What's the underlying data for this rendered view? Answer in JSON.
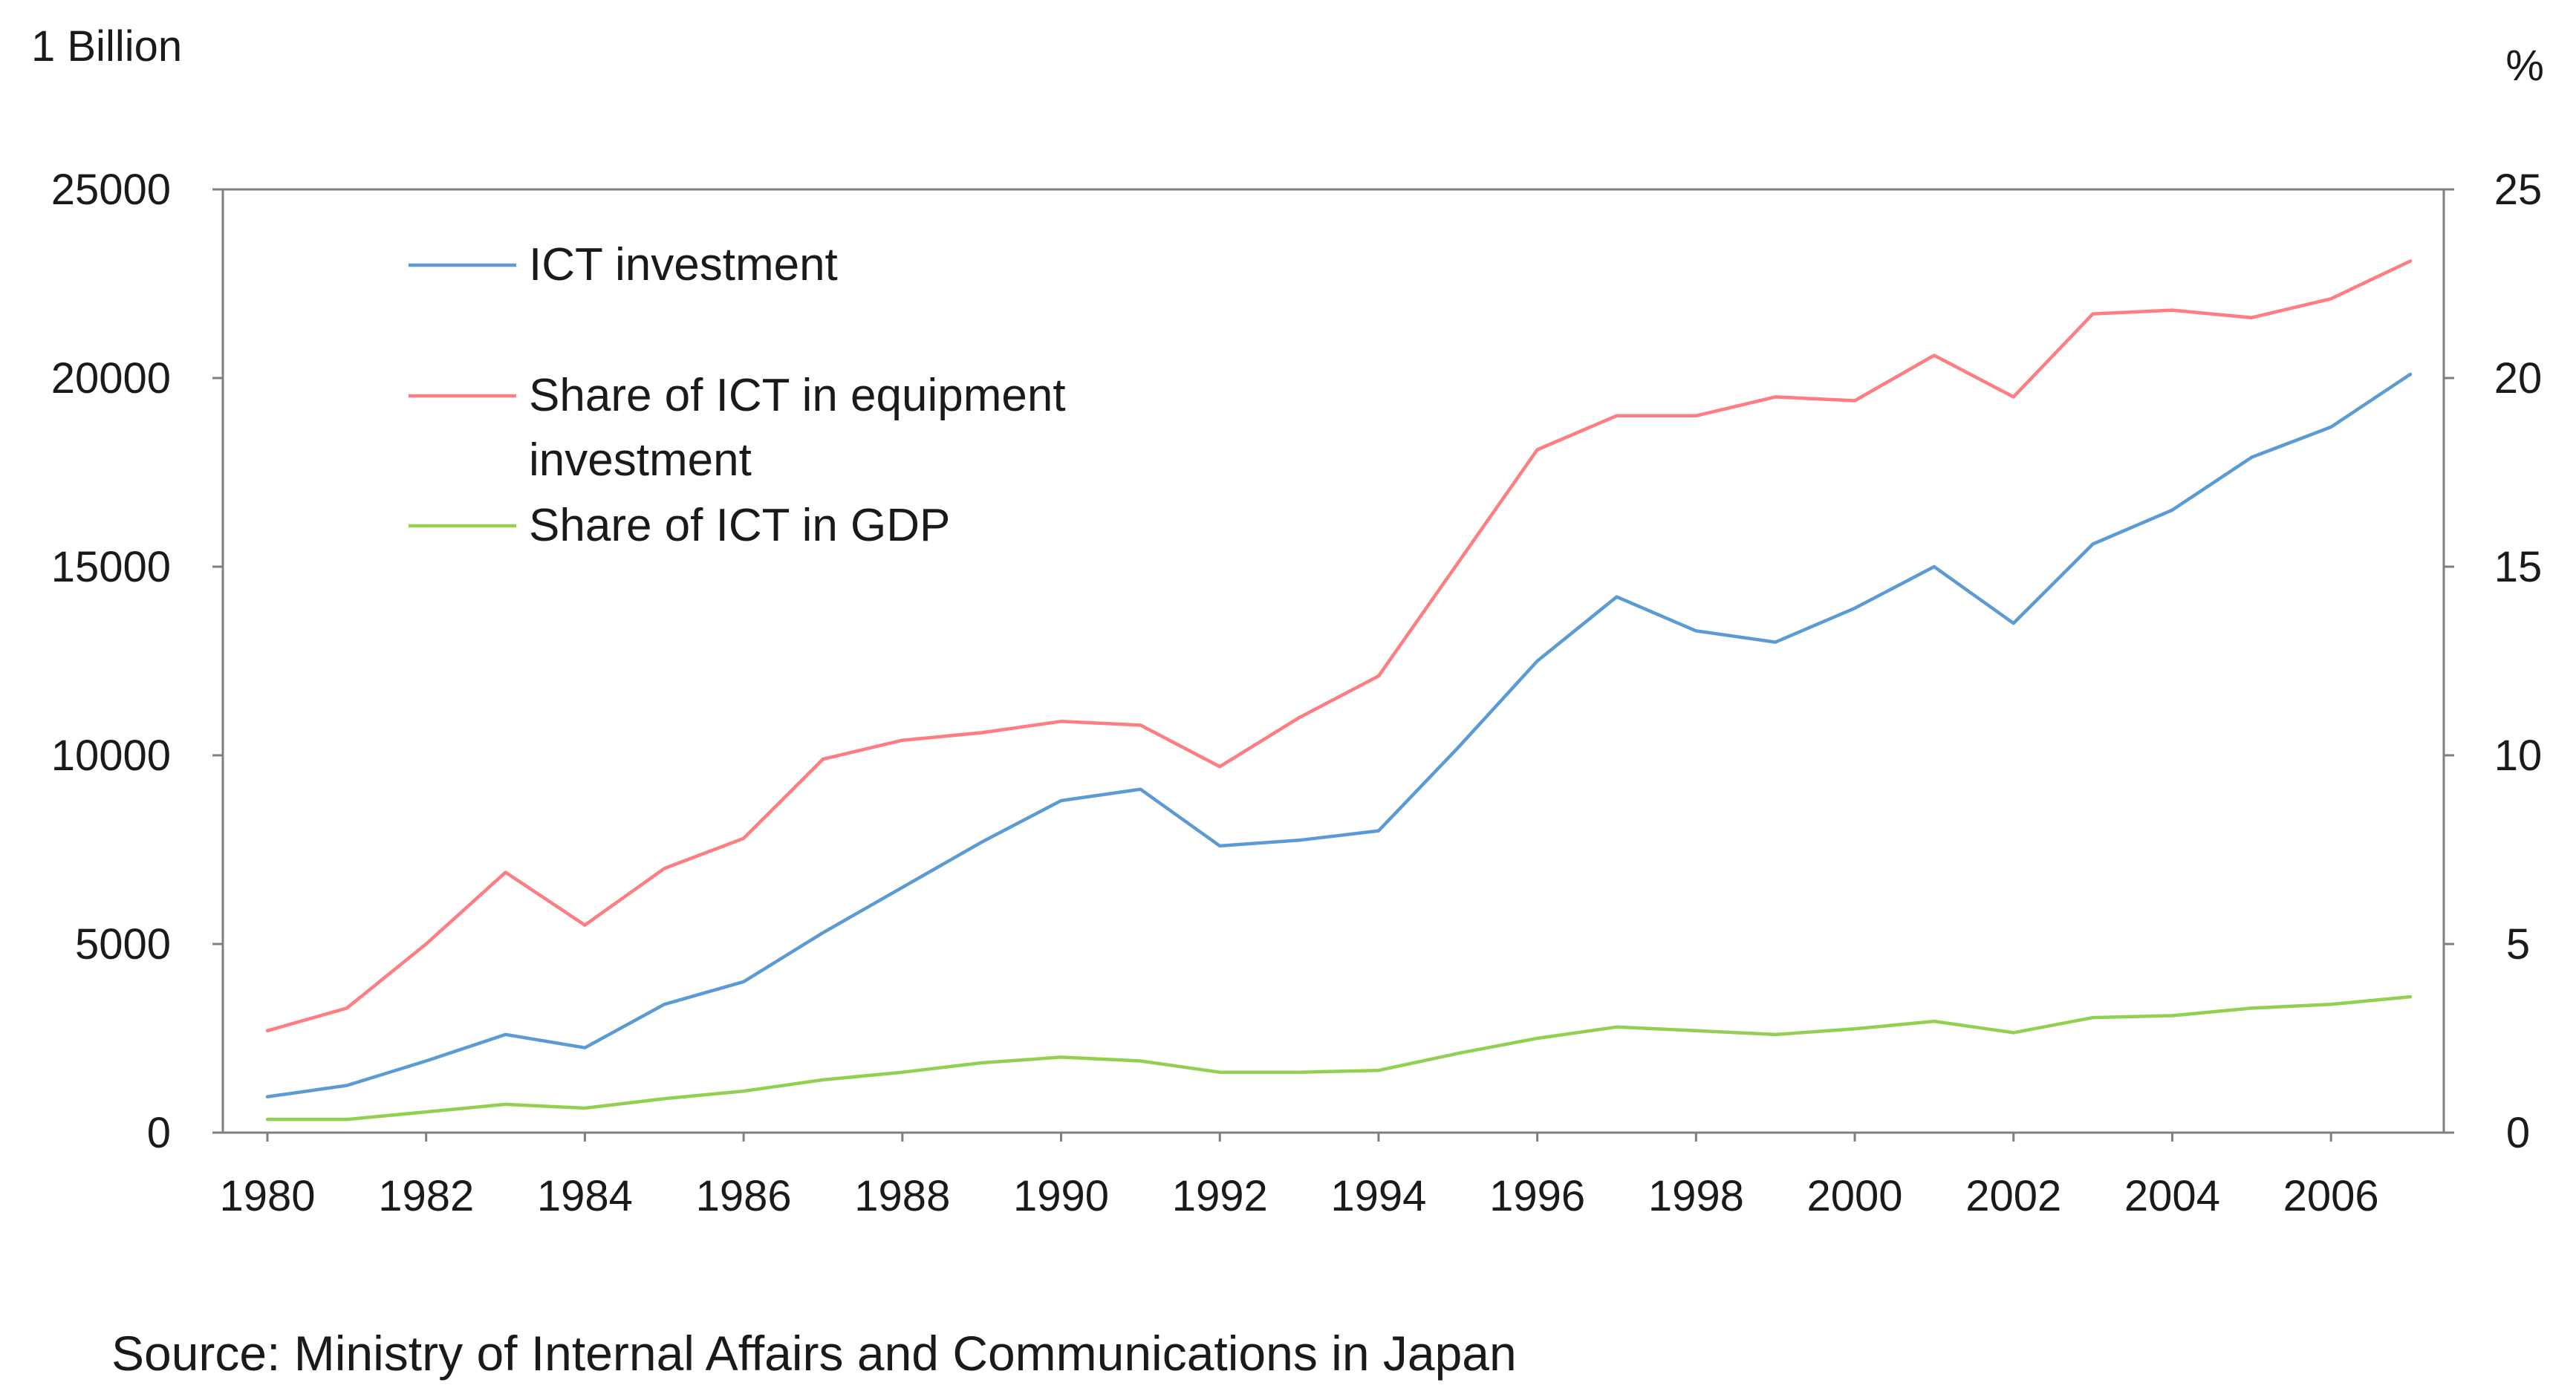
{
  "chart_data": {
    "type": "line",
    "left_axis_unit": "1 Billion",
    "right_axis_unit": "%",
    "source": "Source: Ministry of Internal Affairs and Communications in Japan",
    "x": [
      1980,
      1981,
      1982,
      1983,
      1984,
      1985,
      1986,
      1987,
      1988,
      1989,
      1990,
      1991,
      1992,
      1993,
      1994,
      1995,
      1996,
      1997,
      1998,
      1999,
      2000,
      2001,
      2002,
      2003,
      2004,
      2005,
      2006,
      2007
    ],
    "x_tick_labels": [
      "1980",
      "1982",
      "1984",
      "1986",
      "1988",
      "1990",
      "1992",
      "1994",
      "1996",
      "1998",
      "2000",
      "2002",
      "2004",
      "2006"
    ],
    "xlim": [
      1980,
      2007
    ],
    "y_left_ticks": [
      "0",
      "5000",
      "10000",
      "15000",
      "20000",
      "25000"
    ],
    "y_left_lim": [
      0,
      25000
    ],
    "y_right_ticks": [
      "0",
      "5",
      "10",
      "15",
      "20",
      "25"
    ],
    "y_right_lim": [
      0,
      25
    ],
    "grid": false,
    "legend_position": "top-left",
    "series": [
      {
        "name": "ICT investment",
        "axis": "left",
        "color": "#5b9bd5",
        "values": [
          950,
          1250,
          1900,
          2600,
          2250,
          3400,
          4000,
          5300,
          6500,
          7700,
          8800,
          9100,
          7600,
          7750,
          8000,
          10200,
          12500,
          14200,
          13300,
          13000,
          13900,
          15000,
          13500,
          15600,
          16500,
          17900,
          18700,
          20100
        ]
      },
      {
        "name": "Share of ICT in equipment investment",
        "axis": "right",
        "color": "#ff7c80",
        "values": [
          2.7,
          3.3,
          5.0,
          6.9,
          5.5,
          7.0,
          7.8,
          9.9,
          10.4,
          10.6,
          10.9,
          10.8,
          9.7,
          11.0,
          12.1,
          15.1,
          18.1,
          19.0,
          19.0,
          19.5,
          19.4,
          20.6,
          19.5,
          21.7,
          21.8,
          21.6,
          22.1,
          23.1
        ]
      },
      {
        "name": "Share of ICT in GDP",
        "axis": "right",
        "color": "#92d050",
        "values": [
          0.35,
          0.35,
          0.55,
          0.75,
          0.65,
          0.9,
          1.1,
          1.4,
          1.6,
          1.85,
          2.0,
          1.9,
          1.6,
          1.6,
          1.65,
          2.1,
          2.5,
          2.8,
          2.7,
          2.6,
          2.75,
          2.95,
          2.65,
          3.05,
          3.1,
          3.3,
          3.4,
          3.6
        ]
      }
    ]
  }
}
